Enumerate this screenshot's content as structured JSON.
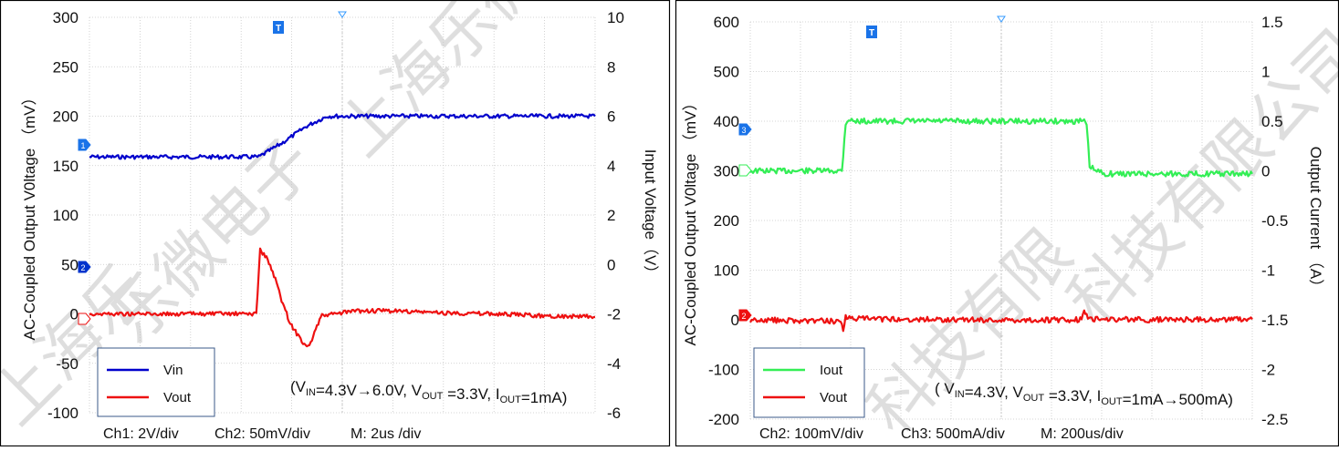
{
  "chart_data": [
    {
      "type": "line",
      "left_axis": {
        "label": "AC-Coupled Output V0ltage  （mV）",
        "ticks": [
          "300",
          "250",
          "200",
          "150",
          "100",
          "50",
          "0",
          "-50",
          "-100"
        ],
        "ylim": [
          -100,
          300
        ]
      },
      "right_axis": {
        "label": "Input Voltage（V）",
        "ticks": [
          "10",
          "8",
          "6",
          "4",
          "2",
          "0",
          "-2",
          "-4",
          "-6"
        ],
        "ylim": [
          -6,
          10
        ]
      },
      "x_ticks": [
        0,
        2,
        4,
        6,
        8,
        10,
        12,
        14,
        16,
        18,
        20
      ],
      "grid": true,
      "legend": {
        "placement": "bottom-left",
        "items": [
          {
            "name": "Vin",
            "color": "#0000cc"
          },
          {
            "name": "Vout",
            "color": "#ee1111"
          }
        ]
      },
      "series": [
        {
          "name": "Vin",
          "axis": "right",
          "color": "#0000cc",
          "x": [
            0,
            6.7,
            7.6,
            8.6,
            9.4,
            10.2,
            20
          ],
          "values": [
            4.35,
            4.35,
            4.9,
            5.6,
            6.0,
            6.0,
            6.0
          ]
        },
        {
          "name": "Vout",
          "axis": "left",
          "color": "#ee1111",
          "x": [
            0,
            6.6,
            6.75,
            7.05,
            7.35,
            7.65,
            7.95,
            8.25,
            8.55,
            8.75,
            8.95,
            9.2,
            10.5,
            12,
            14,
            16,
            18,
            20
          ],
          "values": [
            0,
            0,
            65,
            55,
            35,
            10,
            -10,
            -22,
            -32,
            -30,
            -15,
            -2,
            3,
            3,
            1,
            0,
            -2,
            -3
          ]
        }
      ],
      "annotation": "(V<sub>IN</sub>=4.3V→6.0V, V<sub>OUT</sub> =3.3V, I<sub>OUT</sub>=1mA)",
      "scale_text": [
        "Ch1: 2V/div",
        "Ch2: 50mV/div",
        "M: 2us /div"
      ],
      "markers": {
        "trigger": "T",
        "ch1": "1",
        "ch2": "2"
      },
      "colors": {
        "marker": "#1a73e8"
      }
    },
    {
      "type": "line",
      "left_axis": {
        "label": "AC-Coupled Output V0ltage  （mV）",
        "ticks": [
          "600",
          "500",
          "400",
          "300",
          "200",
          "100",
          "0",
          "-100",
          "-200"
        ],
        "ylim": [
          -200,
          600
        ]
      },
      "right_axis": {
        "label": "Output Current （A）",
        "ticks": [
          "1.5",
          "1",
          "0.5",
          "0",
          "-0.5",
          "-1",
          "-1.5",
          "-2",
          "-2.5"
        ],
        "ylim": [
          -2.5,
          1.5
        ]
      },
      "x_ticks": [
        0,
        200,
        400,
        600,
        800,
        1000,
        1200,
        1400,
        1600,
        1800,
        2000
      ],
      "grid": true,
      "legend": {
        "placement": "bottom-left",
        "items": [
          {
            "name": "Iout",
            "color": "#33ee55"
          },
          {
            "name": "Vout",
            "color": "#ee1111"
          }
        ]
      },
      "series": [
        {
          "name": "Iout",
          "axis": "right",
          "color": "#33ee55",
          "x": [
            0,
            365,
            380,
            392,
            410,
            1330,
            1340,
            1352,
            1375,
            1420,
            2000
          ],
          "values": [
            0,
            0,
            0.48,
            0.52,
            0.5,
            0.5,
            0.45,
            0.05,
            0,
            -0.03,
            -0.03
          ]
        },
        {
          "name": "Vout",
          "axis": "left",
          "color": "#ee1111",
          "x": [
            0,
            360,
            370,
            380,
            395,
            700,
            1000,
            1320,
            1330,
            1345,
            1360,
            1600,
            2000
          ],
          "values": [
            0,
            -3,
            -20,
            8,
            2,
            1,
            -1,
            0,
            15,
            5,
            2,
            0,
            1
          ]
        }
      ],
      "annotation": "( V<sub>IN</sub>=4.3V, V<sub>OUT</sub> =3.3V, I<sub>OUT</sub>=1mA→500mA)",
      "scale_text": [
        "Ch2: 100mV/div",
        "Ch3: 500mA/div",
        "M: 200us/div"
      ],
      "markers": {
        "trigger": "T",
        "ch3": "3",
        "ch2": "2"
      },
      "colors": {
        "marker": "#1a73e8"
      }
    }
  ],
  "watermark": "上海乐微电子科技有限公司"
}
